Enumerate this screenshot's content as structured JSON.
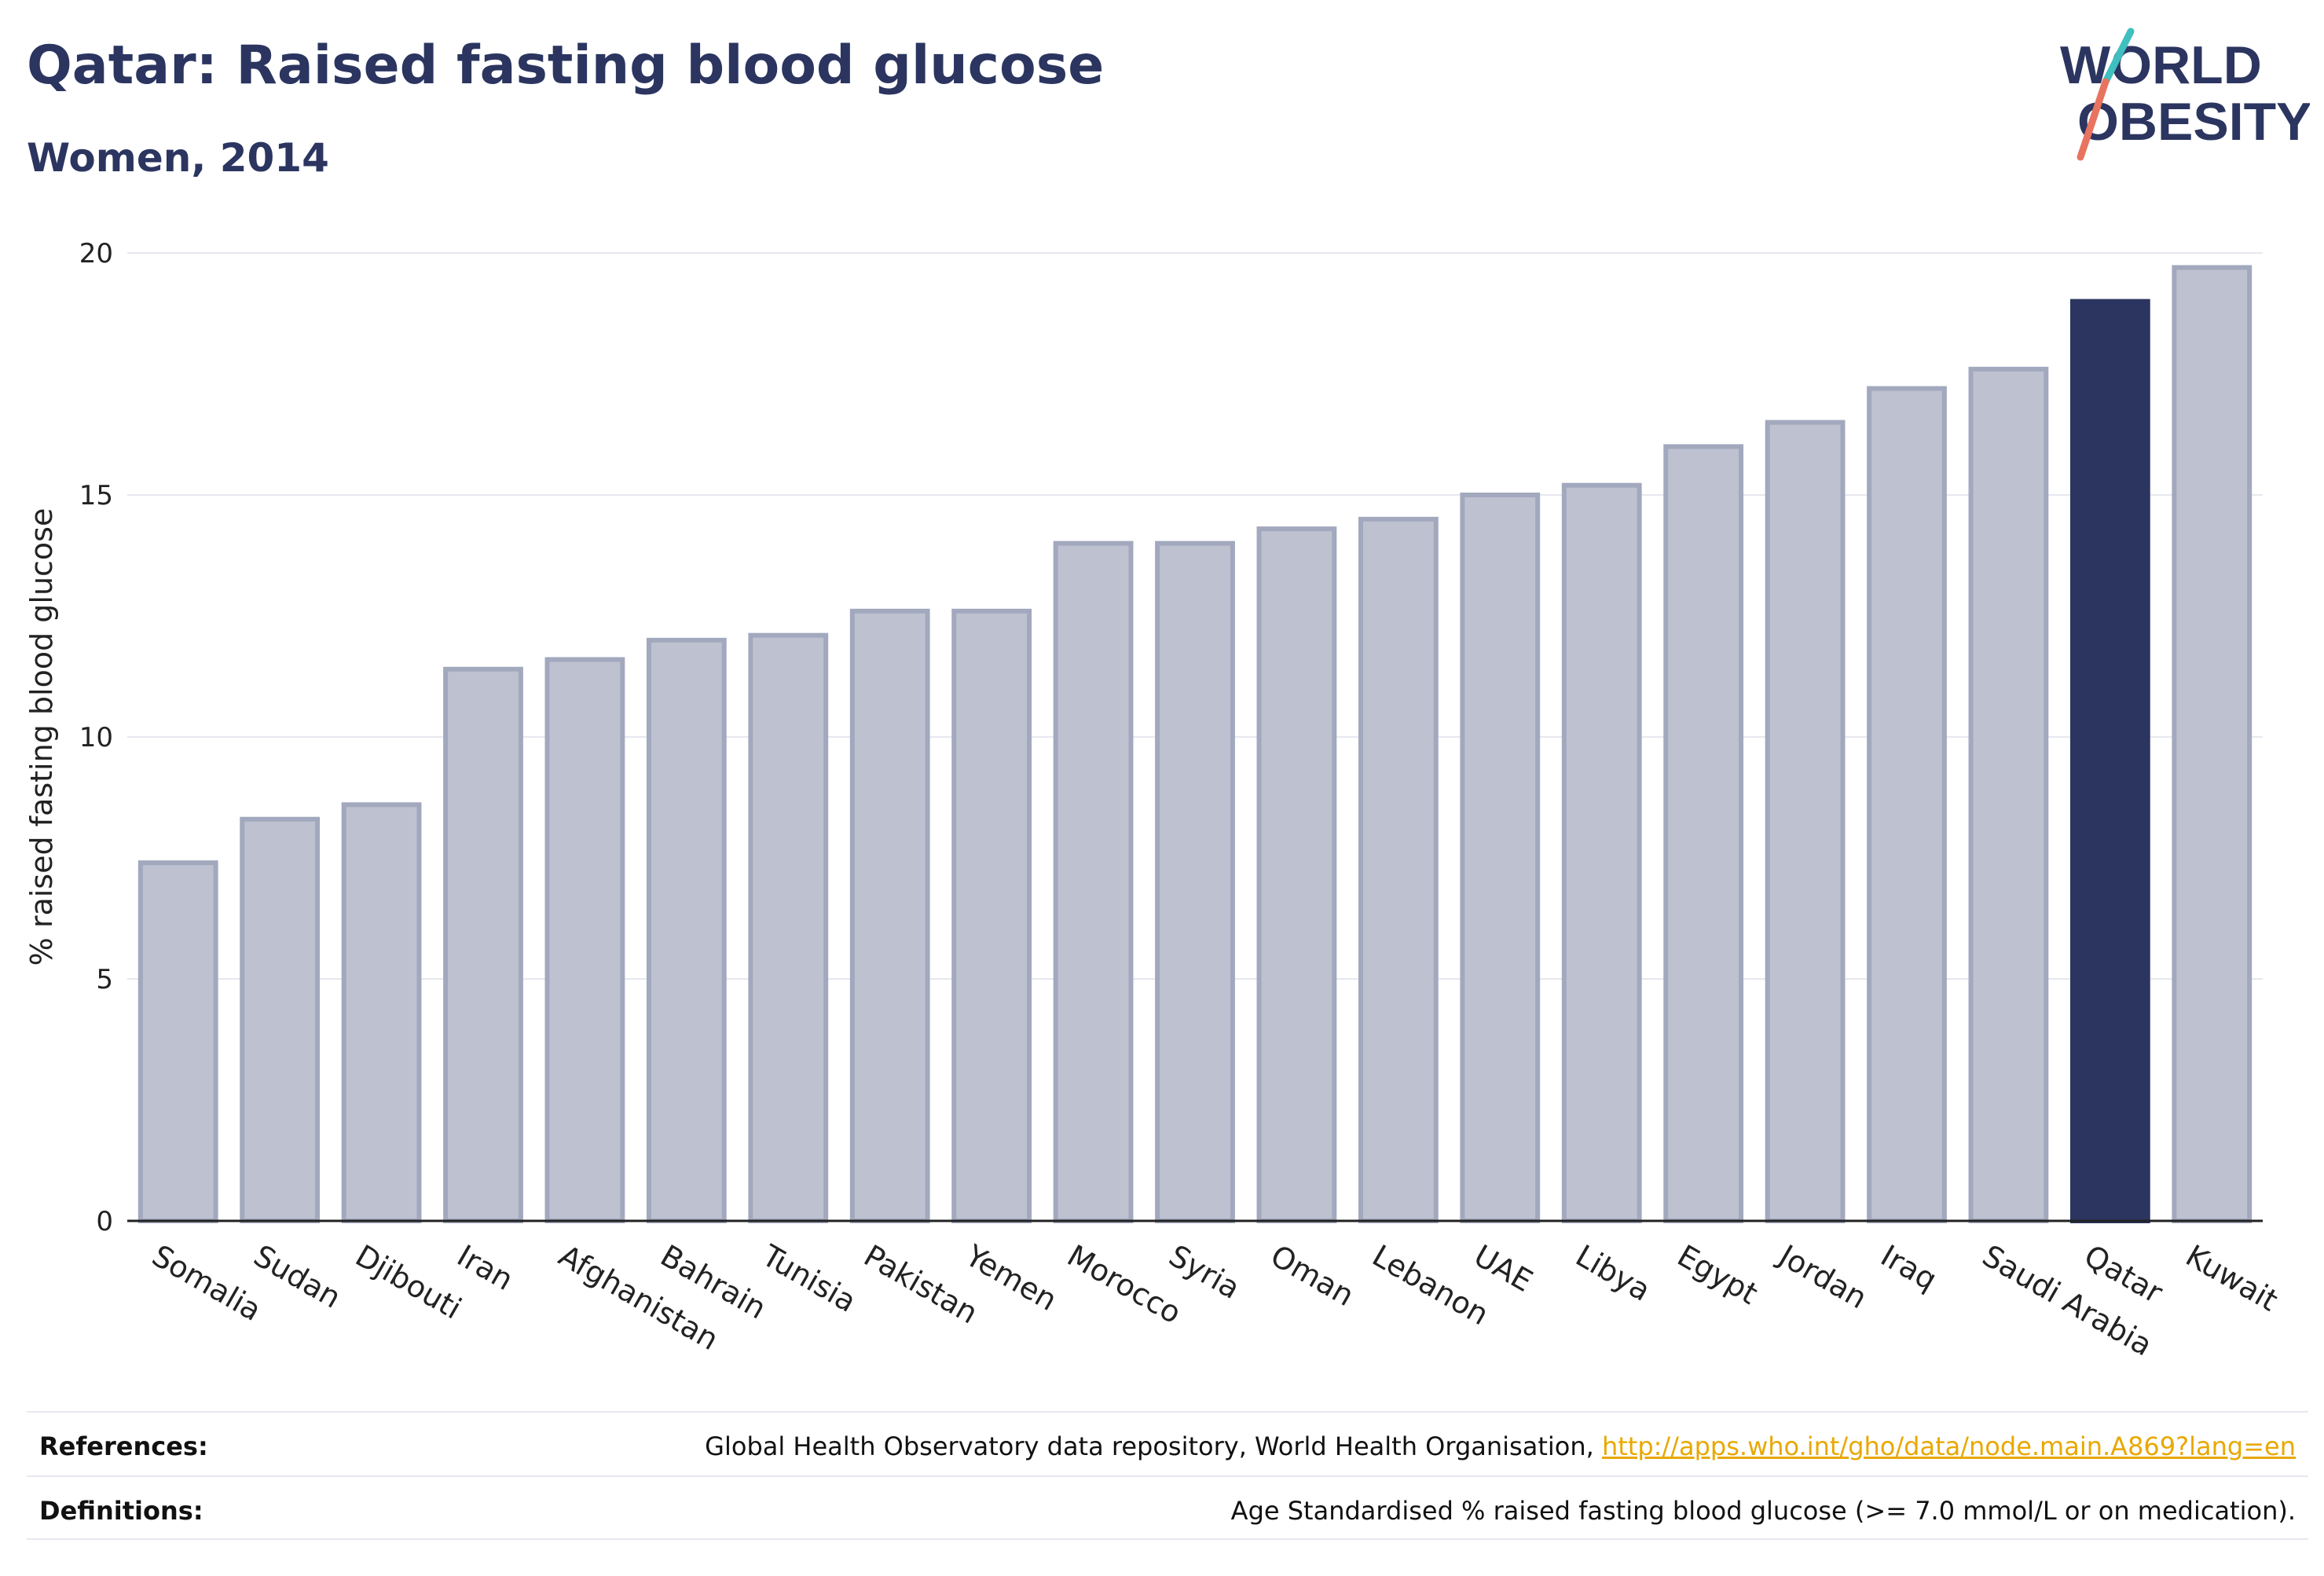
{
  "header": {
    "title": "Qatar: Raised fasting blood glucose",
    "subtitle": "Women, 2014"
  },
  "logo": {
    "line1": "WORLD",
    "line2": "OBESITY",
    "accent_teal": "#3fbfbf",
    "accent_coral": "#e8735f"
  },
  "colors": {
    "highlight": "#2b3560",
    "bar_fill": "#bec2d0",
    "bar_stroke": "#a2a8bd",
    "grid": "#e6e8f0"
  },
  "chart_data": {
    "type": "bar",
    "ylabel": "% raised fasting blood glucose",
    "xlabel": "",
    "ylim": [
      0,
      20
    ],
    "yticks": [
      0,
      5,
      10,
      15,
      20
    ],
    "grid": true,
    "highlight": "Qatar",
    "categories": [
      "Somalia",
      "Sudan",
      "Djibouti",
      "Iran",
      "Afghanistan",
      "Bahrain",
      "Tunisia",
      "Pakistan",
      "Yemen",
      "Morocco",
      "Syria",
      "Oman",
      "Lebanon",
      "UAE",
      "Libya",
      "Egypt",
      "Jordan",
      "Iraq",
      "Saudi Arabia",
      "Qatar",
      "Kuwait"
    ],
    "values": [
      7.4,
      8.3,
      8.6,
      11.4,
      11.6,
      12.0,
      12.1,
      12.6,
      12.6,
      14.0,
      14.0,
      14.3,
      14.5,
      15.0,
      15.2,
      16.0,
      16.5,
      17.2,
      17.6,
      19.0,
      19.7
    ]
  },
  "footer": {
    "references_label": "References:",
    "references_text": "Global Health Observatory data repository, World Health Organisation,",
    "references_link": "http://apps.who.int/gho/data/node.main.A869?lang=en",
    "definitions_label": "Definitions:",
    "definitions_text": "Age Standardised % raised fasting blood glucose (>= 7.0 mmol/L or on medication)."
  }
}
